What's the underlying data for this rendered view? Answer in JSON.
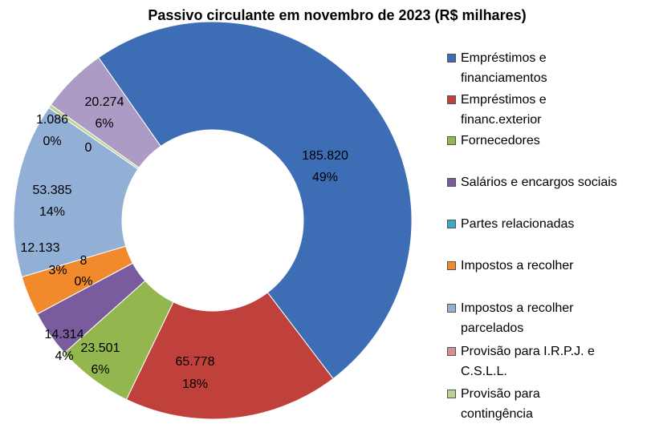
{
  "chart_data": {
    "type": "donut",
    "title": "Passivo circulante em novembro de 2023 (R$ milhares)",
    "categories": [
      "Empréstimos e financiamentos",
      "Empréstimos e financ.exterior",
      "Fornecedores",
      "Salários e encargos sociais",
      "Partes relacionadas",
      "Impostos a recolher",
      "Impostos a recolher parcelados",
      "Provisão para I.R.P.J. e C.S.L.L.",
      "Provisão para contingência",
      null
    ],
    "values": [
      185820,
      65778,
      23501,
      14314,
      8,
      12133,
      53385,
      0,
      1086,
      20274
    ],
    "value_labels": [
      "185.820",
      "65.778",
      "23.501",
      "14.314",
      "8",
      "12.133",
      "53.385",
      "0",
      "1.086",
      "20.274"
    ],
    "percent_labels": [
      "49%",
      "18%",
      "6%",
      "4%",
      "0%",
      "3%",
      "14%",
      null,
      "0%",
      "6%"
    ],
    "colors": [
      "#3d6db5",
      "#c0403c",
      "#94b64e",
      "#7a5c9e",
      "#3fa8c4",
      "#f08a2c",
      "#92b0d6",
      "#d68f8d",
      "#bcd28f",
      "#ac9bc4"
    ]
  }
}
